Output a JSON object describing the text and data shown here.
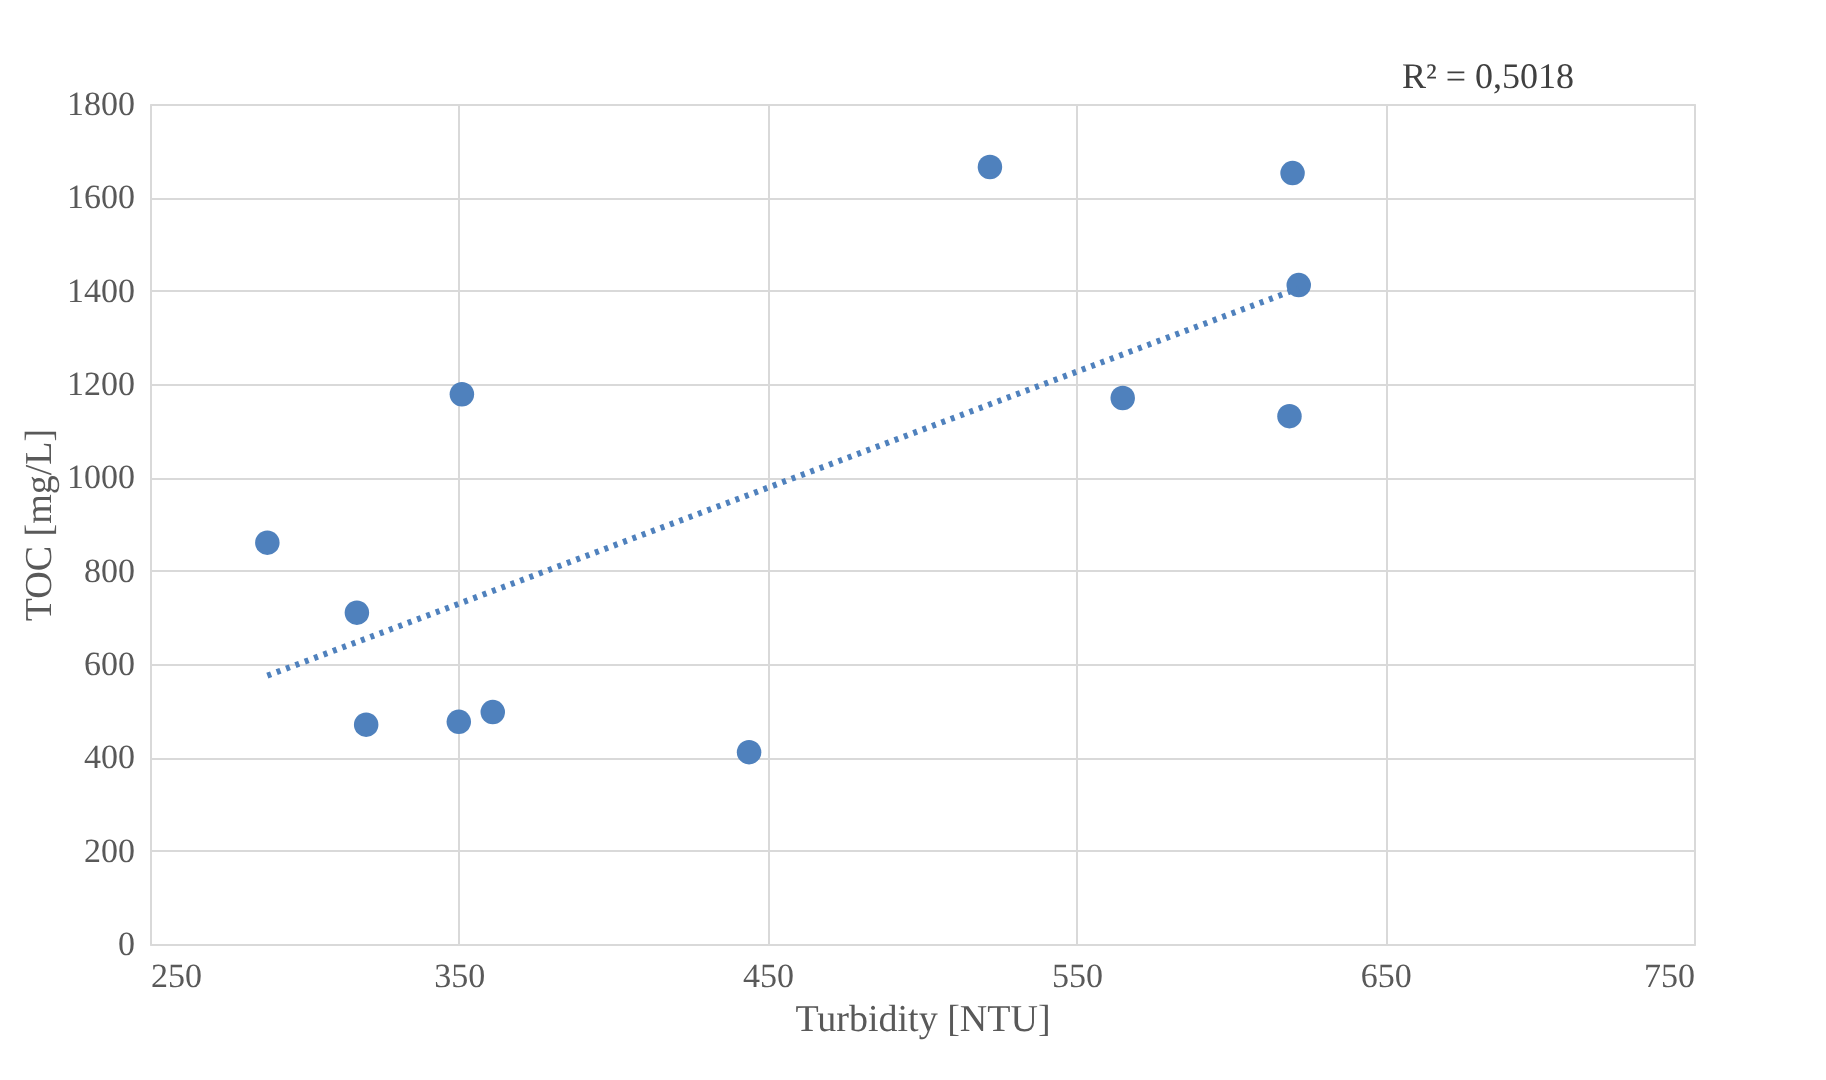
{
  "chart_data": {
    "type": "scatter",
    "xlabel": "Turbidity [NTU]",
    "ylabel": "TOC [mg/L]",
    "annotations": [
      "R² = 0,5018"
    ],
    "series": [
      {
        "color": "#4f81bd",
        "marker": "circle",
        "x": [
          288,
          317,
          320,
          350,
          351,
          361,
          444,
          522,
          565,
          620,
          622,
          619
        ],
        "values": [
          860,
          710,
          470,
          476,
          1178,
          497,
          411,
          1665,
          1170,
          1652,
          1412,
          1131
        ]
      },
      {
        "type": "line",
        "color": "#4f81bd",
        "line_style": "dotted",
        "x": [
          288,
          622
        ],
        "values": [
          575,
          1405
        ]
      }
    ],
    "xlim": [
      250,
      750
    ],
    "xticks": [
      250,
      350,
      450,
      550,
      650,
      750
    ],
    "ylim": [
      0,
      1800
    ],
    "yticks": [
      0,
      200,
      400,
      600,
      800,
      1000,
      1200,
      1400,
      1600,
      1800
    ],
    "grid": true
  }
}
